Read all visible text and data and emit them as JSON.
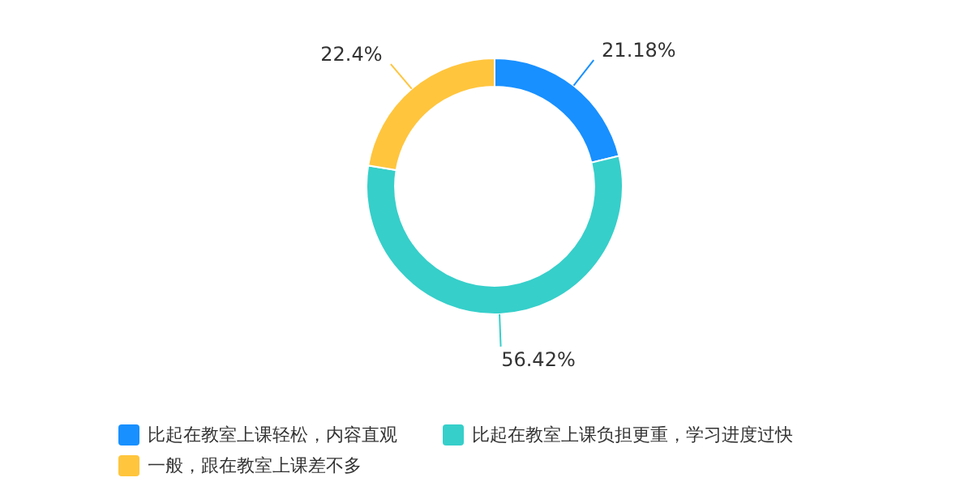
{
  "chart_data": {
    "type": "donut",
    "categories": [
      "比起在教室上课轻松，内容直观",
      "比起在教室上课负担更重，学习进度过快",
      "一般，跟在教室上课差不多"
    ],
    "values": [
      21.18,
      56.42,
      22.4
    ],
    "colors": [
      "#1890ff",
      "#36cfca",
      "#ffc53d"
    ],
    "value_labels": [
      "21.18%",
      "56.42%",
      "22.4%"
    ],
    "legend": "bottom"
  }
}
